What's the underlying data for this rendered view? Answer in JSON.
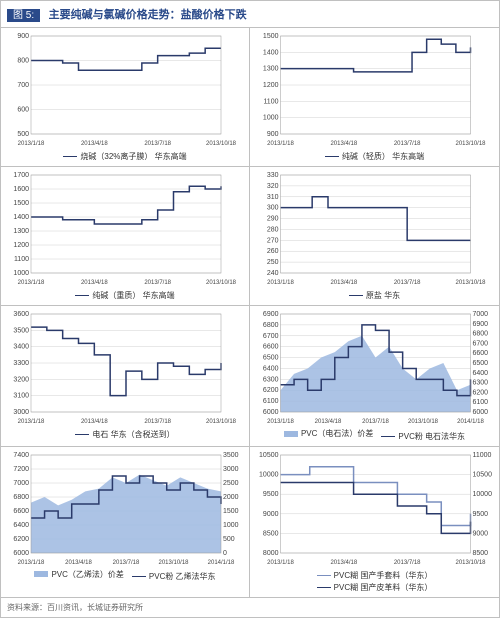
{
  "header": {
    "figure_label": "图 5:",
    "title": "主要纯碱与氯碱价格走势：盐酸价格下跌"
  },
  "footer": {
    "source": "资料来源：百川资讯，长城证券研究所"
  },
  "colors": {
    "line_primary": "#2a3a6a",
    "line_secondary": "#7a8fbf",
    "area_fill": "#9db8e0",
    "grid": "#d0d0d0",
    "header_bg": "#2a4a8a",
    "header_text": "#ffffff",
    "background": "#ffffff"
  },
  "x_axis": {
    "ticks": [
      "2013/1/18",
      "2013/4/18",
      "2013/7/18",
      "2013/10/18"
    ],
    "ticks_ext": [
      "2013/1/18",
      "2013/4/18",
      "2013/7/18",
      "2013/10/18",
      "2014/1/18"
    ]
  },
  "charts": [
    {
      "id": "c1",
      "ylim": [
        500,
        900
      ],
      "ystep": 100,
      "legend": [
        {
          "type": "line",
          "label": "烧碱（32%离子膜） 华东高端"
        }
      ],
      "series": [
        {
          "type": "line",
          "y": [
            800,
            800,
            790,
            760,
            760,
            760,
            760,
            790,
            820,
            820,
            830,
            850,
            850
          ]
        }
      ]
    },
    {
      "id": "c2",
      "ylim": [
        900,
        1500
      ],
      "ystep": 100,
      "legend": [
        {
          "type": "line",
          "label": "纯碱（轻质） 华东高端"
        }
      ],
      "series": [
        {
          "type": "line",
          "y": [
            1300,
            1300,
            1300,
            1300,
            1300,
            1280,
            1280,
            1280,
            1280,
            1400,
            1480,
            1450,
            1400,
            1430
          ]
        }
      ]
    },
    {
      "id": "c3",
      "ylim": [
        1000,
        1700
      ],
      "ystep": 100,
      "legend": [
        {
          "type": "line",
          "label": "纯碱（重质） 华东高端"
        }
      ],
      "series": [
        {
          "type": "line",
          "y": [
            1400,
            1400,
            1380,
            1380,
            1350,
            1350,
            1350,
            1380,
            1450,
            1580,
            1620,
            1600,
            1620
          ]
        }
      ]
    },
    {
      "id": "c4",
      "ylim": [
        240,
        330
      ],
      "ystep": 10,
      "legend": [
        {
          "type": "line",
          "label": "原盐 华东"
        }
      ],
      "series": [
        {
          "type": "line",
          "y": [
            300,
            300,
            310,
            300,
            300,
            300,
            300,
            300,
            270,
            270,
            270,
            270,
            270
          ]
        }
      ]
    },
    {
      "id": "c5",
      "ylim": [
        3000,
        3600
      ],
      "ystep": 100,
      "legend": [
        {
          "type": "line",
          "label": "电石 华东（含税送到）"
        }
      ],
      "series": [
        {
          "type": "line",
          "y": [
            3520,
            3500,
            3450,
            3420,
            3350,
            3100,
            3250,
            3200,
            3300,
            3280,
            3230,
            3260,
            3300
          ]
        }
      ]
    },
    {
      "id": "c6",
      "ylim": [
        6000,
        6900
      ],
      "ystep": 100,
      "extended_x": true,
      "y2lim": [
        6000,
        7000
      ],
      "legend": [
        {
          "type": "area",
          "label": "PVC（电石法）价差"
        },
        {
          "type": "line",
          "label": "PVC粉 电石法华东"
        }
      ],
      "series": [
        {
          "type": "area",
          "y": [
            6200,
            6350,
            6400,
            6500,
            6550,
            6650,
            6700,
            6500,
            6600,
            6400,
            6300,
            6400,
            6450,
            6200,
            6250
          ]
        },
        {
          "type": "line",
          "y": [
            6250,
            6300,
            6200,
            6300,
            6500,
            6600,
            6800,
            6750,
            6550,
            6400,
            6300,
            6300,
            6200,
            6150,
            6300
          ]
        }
      ]
    },
    {
      "id": "c7",
      "ylim": [
        6000,
        7400
      ],
      "ystep": 200,
      "extended_x": true,
      "y2lim": [
        0,
        3500
      ],
      "y2step": 500,
      "legend": [
        {
          "type": "area",
          "label": "PVC（乙烯法）价差"
        },
        {
          "type": "line",
          "label": "PVC粉 乙烯法华东"
        }
      ],
      "series": [
        {
          "type": "area",
          "y2": true,
          "y": [
            1800,
            2000,
            1700,
            1900,
            2200,
            2300,
            2700,
            2500,
            2800,
            2600,
            2400,
            2700,
            2500,
            2300,
            2200
          ]
        },
        {
          "type": "line",
          "y": [
            6500,
            6600,
            6500,
            6700,
            6700,
            6900,
            7100,
            7000,
            7100,
            7000,
            6900,
            7000,
            6900,
            6800,
            6700
          ]
        }
      ]
    },
    {
      "id": "c8",
      "ylim": [
        8000,
        10500
      ],
      "ystep": 500,
      "y2lim": [
        8500,
        11000
      ],
      "y2step": 500,
      "legend": [
        {
          "type": "line-light",
          "label": "PVC糊 国产手套料（华东）"
        },
        {
          "type": "line",
          "label": "PVC糊 国产皮革料（华东）"
        }
      ],
      "series": [
        {
          "type": "line",
          "cls": "light",
          "y": [
            10000,
            10000,
            10200,
            10200,
            10200,
            9800,
            9800,
            9800,
            9500,
            9500,
            9300,
            8700,
            8700,
            9000
          ]
        },
        {
          "type": "line",
          "y": [
            9800,
            9800,
            9800,
            9800,
            9800,
            9500,
            9500,
            9500,
            9200,
            9200,
            9000,
            8500,
            8500,
            8800
          ]
        }
      ]
    }
  ]
}
